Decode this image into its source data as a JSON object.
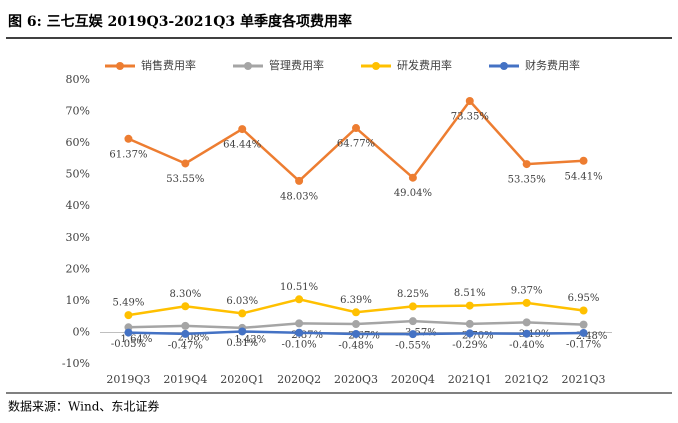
{
  "chart_data": {
    "type": "line",
    "title": "图 6: 三七互娱 2019Q3-2021Q3 单季度各项费用率",
    "source": "数据来源：Wind、东北证券",
    "categories": [
      "2019Q3",
      "2019Q4",
      "2020Q1",
      "2020Q2",
      "2020Q3",
      "2020Q4",
      "2021Q1",
      "2021Q2",
      "2021Q3"
    ],
    "series": [
      {
        "name": "销售费用率",
        "color": "#ED7D31",
        "values": [
          61.37,
          53.55,
          64.44,
          48.03,
          64.77,
          49.04,
          73.35,
          53.35,
          54.41
        ],
        "value_labels": [
          "61.37%",
          "53.55%",
          "64.44%",
          "48.03%",
          "64.77%",
          "49.04%",
          "73.35%",
          "53.35%",
          "54.41%"
        ]
      },
      {
        "name": "管理费用率",
        "color": "#A5A5A5",
        "values": [
          1.64,
          2.08,
          1.43,
          2.87,
          2.67,
          3.57,
          2.7,
          3.19,
          2.48
        ],
        "value_labels": [
          "1.64%",
          "2.08%",
          "1.43%",
          "2.87%",
          "2.67%",
          "3.57%",
          "2.70%",
          "3.19%",
          "2.48%"
        ]
      },
      {
        "name": "研发费用率",
        "color": "#FFC000",
        "values": [
          5.49,
          8.3,
          6.03,
          10.51,
          6.39,
          8.25,
          8.51,
          9.37,
          6.95
        ],
        "value_labels": [
          "5.49%",
          "8.30%",
          "6.03%",
          "10.51%",
          "6.39%",
          "8.25%",
          "8.51%",
          "9.37%",
          "6.95%"
        ]
      },
      {
        "name": "财务费用率",
        "color": "#4472C4",
        "values": [
          -0.05,
          -0.47,
          0.31,
          -0.1,
          -0.48,
          -0.55,
          -0.29,
          -0.4,
          -0.17
        ],
        "value_labels": [
          "-0.05%",
          "-0.47%",
          "0.31%",
          "-0.10%",
          "-0.48%",
          "-0.55%",
          "-0.29%",
          "-0.40%",
          "-0.17%"
        ]
      }
    ],
    "ylim": [
      -10,
      80
    ],
    "yticks": [
      {
        "value": -10,
        "label": "-10%"
      },
      {
        "value": 0,
        "label": "0%"
      },
      {
        "value": 10,
        "label": "10%"
      },
      {
        "value": 20,
        "label": "20%"
      },
      {
        "value": 30,
        "label": "30%"
      },
      {
        "value": 40,
        "label": "40%"
      },
      {
        "value": 50,
        "label": "50%"
      },
      {
        "value": 60,
        "label": "60%"
      },
      {
        "value": 70,
        "label": "70%"
      },
      {
        "value": 80,
        "label": "80%"
      }
    ],
    "grid": false,
    "legend": "top"
  }
}
